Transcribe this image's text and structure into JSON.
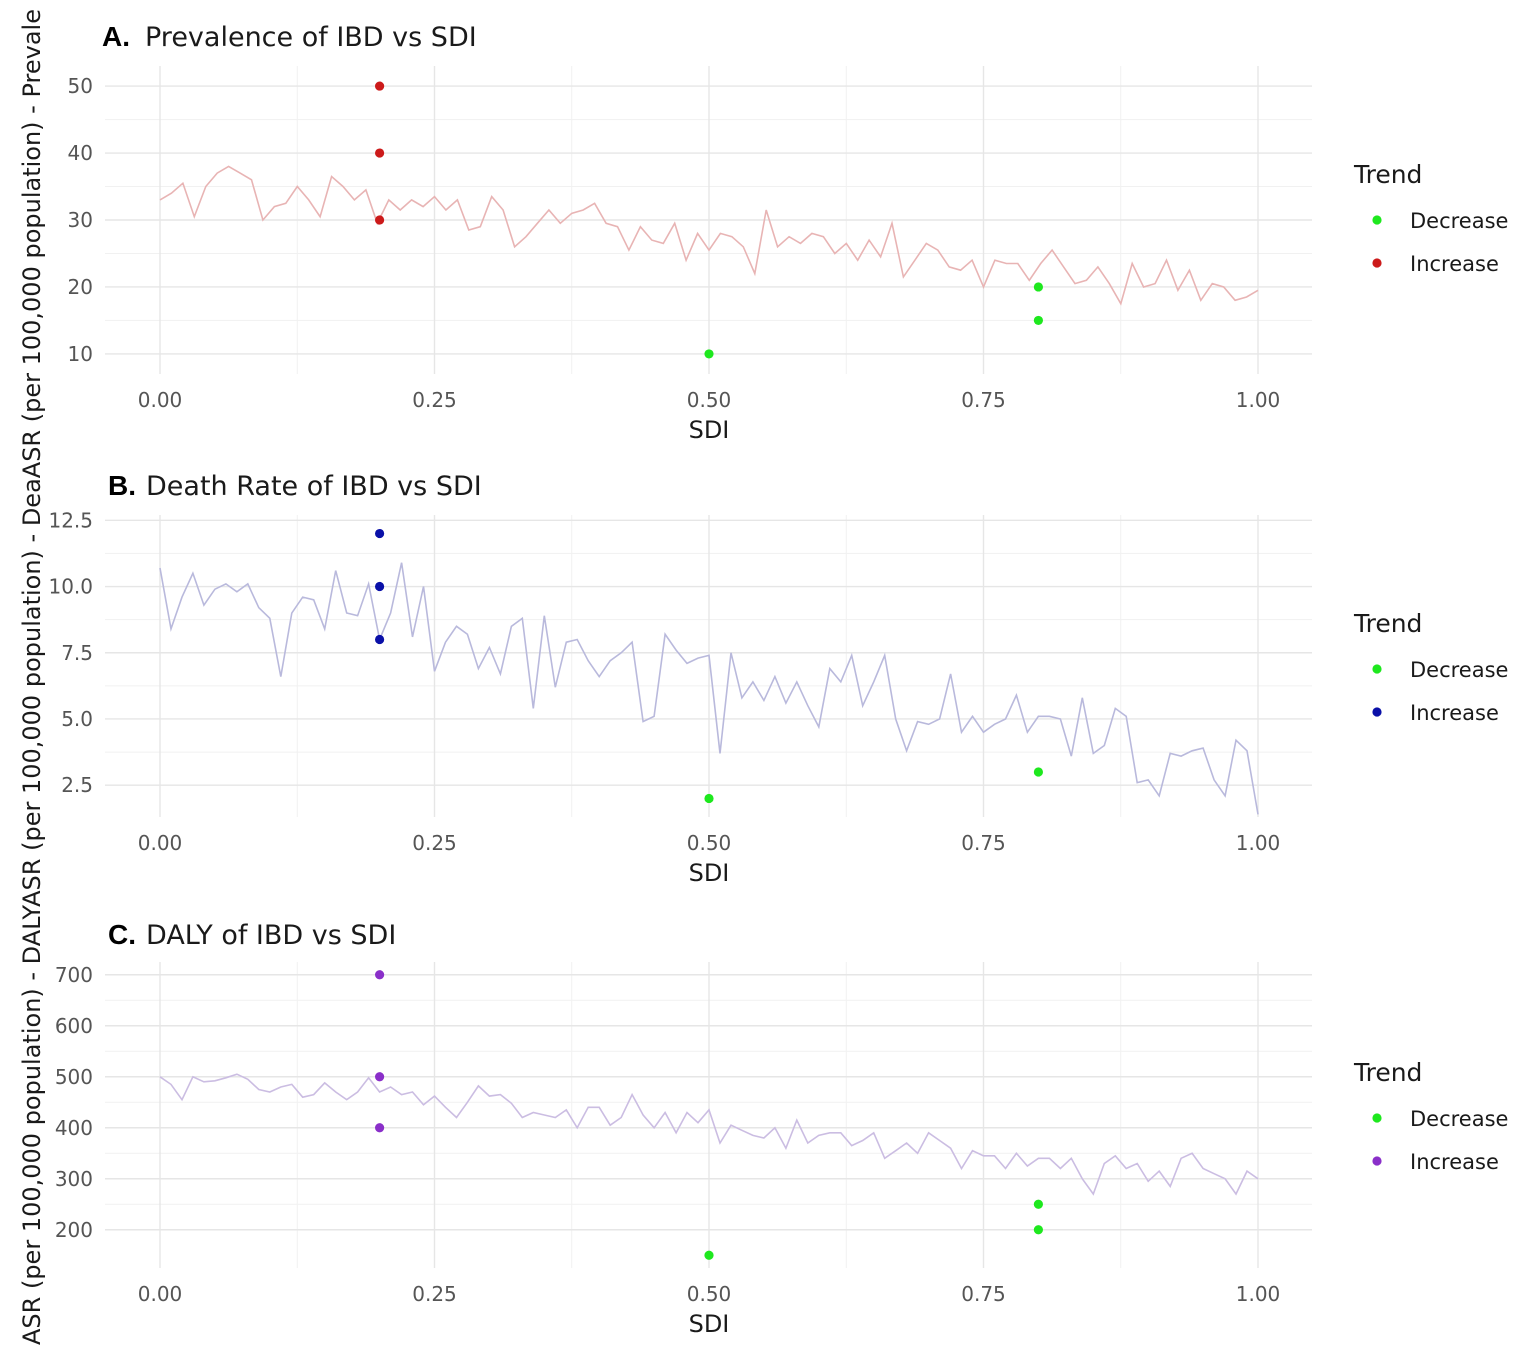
{
  "figure": {
    "y_axis_label": "ASR (per 100,000 population) - DALYASR (per 100,000 population) - DeaASR (per 100,000 population) - Prevale"
  },
  "chart_data": [
    {
      "type": "line",
      "panel_letter": "A.",
      "title": "Prevalence of IBD vs SDI",
      "xlabel": "SDI",
      "xlim": [
        0,
        1
      ],
      "xticks": [
        0,
        0.25,
        0.5,
        0.75,
        1
      ],
      "xtick_labels": [
        "0.00",
        "0.25",
        "0.50",
        "0.75",
        "1.00"
      ],
      "ylim": [
        7,
        53
      ],
      "yticks": [
        10,
        20,
        30,
        40,
        50
      ],
      "ytick_labels": [
        "10",
        "20",
        "30",
        "40",
        "50"
      ],
      "grid": true,
      "line_color": "#e8b4b4",
      "series": [
        {
          "x_start": 0,
          "x_end": 1,
          "values": [
            33,
            34,
            35.5,
            30.5,
            35,
            37,
            38,
            37,
            36,
            30,
            32,
            32.5,
            35,
            33,
            30.5,
            36.5,
            35,
            33,
            34.5,
            29.5,
            33,
            31.5,
            33,
            32,
            33.5,
            31.5,
            33,
            28.5,
            29,
            33.5,
            31.5,
            26,
            27.5,
            29.5,
            31.5,
            29.5,
            31,
            31.5,
            32.5,
            29.5,
            29,
            25.5,
            29,
            27,
            26.5,
            29.5,
            24,
            28,
            25.5,
            28,
            27.5,
            26,
            22,
            31.5,
            26,
            27.5,
            26.5,
            28,
            27.5,
            25,
            26.5,
            24,
            27,
            24.5,
            29.5,
            21.5,
            24,
            26.5,
            25.5,
            23,
            22.5,
            24,
            20,
            24,
            23.5,
            23.5,
            21,
            23.5,
            25.5,
            23,
            20.5,
            21,
            23,
            20.5,
            17.5,
            23.5,
            20,
            20.5,
            24,
            19.5,
            22.5,
            18,
            20.5,
            20,
            18,
            18.5,
            19.5
          ]
        }
      ],
      "trend_points": [
        {
          "x": 0.2,
          "y": 50,
          "trend": "Increase"
        },
        {
          "x": 0.2,
          "y": 40,
          "trend": "Increase"
        },
        {
          "x": 0.2,
          "y": 30,
          "trend": "Increase"
        },
        {
          "x": 0.8,
          "y": 20,
          "trend": "Decrease"
        },
        {
          "x": 0.8,
          "y": 15,
          "trend": "Decrease"
        },
        {
          "x": 0.5,
          "y": 10,
          "trend": "Decrease"
        }
      ],
      "legend": {
        "title": "Trend",
        "position": "right",
        "entries": [
          {
            "label": "Decrease",
            "color": "#1ee81e"
          },
          {
            "label": "Increase",
            "color": "#cc1a1a"
          }
        ]
      }
    },
    {
      "type": "line",
      "panel_letter": "B.",
      "title": "Death Rate of IBD vs SDI",
      "xlabel": "SDI",
      "xlim": [
        0,
        1
      ],
      "xticks": [
        0,
        0.25,
        0.5,
        0.75,
        1
      ],
      "xtick_labels": [
        "0.00",
        "0.25",
        "0.50",
        "0.75",
        "1.00"
      ],
      "ylim": [
        1.3,
        12.7
      ],
      "yticks": [
        2.5,
        5,
        7.5,
        10,
        12.5
      ],
      "ytick_labels": [
        "2.5",
        "5.0",
        "7.5",
        "10.0",
        "12.5"
      ],
      "grid": true,
      "line_color": "#b9b9dc",
      "series": [
        {
          "x_start": 0,
          "x_end": 1,
          "values": [
            10.7,
            8.4,
            9.6,
            10.5,
            9.3,
            9.9,
            10.1,
            9.8,
            10.1,
            9.2,
            8.8,
            6.6,
            9.0,
            9.6,
            9.5,
            8.4,
            10.6,
            9.0,
            8.9,
            10.1,
            8.0,
            9.0,
            10.9,
            8.1,
            10.0,
            6.8,
            7.9,
            8.5,
            8.2,
            6.9,
            7.7,
            6.7,
            8.5,
            8.8,
            5.4,
            8.9,
            6.2,
            7.9,
            8.0,
            7.2,
            6.6,
            7.2,
            7.5,
            7.9,
            4.9,
            5.1,
            8.2,
            7.6,
            7.1,
            7.3,
            7.4,
            3.7,
            7.5,
            5.8,
            6.4,
            5.7,
            6.6,
            5.6,
            6.4,
            5.5,
            4.7,
            6.9,
            6.4,
            7.4,
            5.5,
            6.4,
            7.4,
            5.0,
            3.8,
            4.9,
            4.8,
            5.0,
            6.7,
            4.5,
            5.1,
            4.5,
            4.8,
            5.0,
            5.9,
            4.5,
            5.1,
            5.1,
            5.0,
            3.6,
            5.8,
            3.7,
            4.0,
            5.4,
            5.1,
            2.6,
            2.7,
            2.1,
            3.7,
            3.6,
            3.8,
            3.9,
            2.7,
            2.1,
            4.2,
            3.8,
            1.4
          ]
        }
      ],
      "trend_points": [
        {
          "x": 0.2,
          "y": 12,
          "trend": "Increase"
        },
        {
          "x": 0.2,
          "y": 10,
          "trend": "Increase"
        },
        {
          "x": 0.2,
          "y": 8,
          "trend": "Increase"
        },
        {
          "x": 0.8,
          "y": 3,
          "trend": "Decrease"
        },
        {
          "x": 0.5,
          "y": 2,
          "trend": "Decrease"
        }
      ],
      "legend": {
        "title": "Trend",
        "position": "right",
        "entries": [
          {
            "label": "Decrease",
            "color": "#1ee81e"
          },
          {
            "label": "Increase",
            "color": "#0a10a8"
          }
        ]
      }
    },
    {
      "type": "line",
      "panel_letter": "C.",
      "title": "DALY of IBD vs SDI",
      "xlabel": "SDI",
      "xlim": [
        0,
        1
      ],
      "xticks": [
        0,
        0.25,
        0.5,
        0.75,
        1
      ],
      "xtick_labels": [
        "0.00",
        "0.25",
        "0.50",
        "0.75",
        "1.00"
      ],
      "ylim": [
        125,
        725
      ],
      "yticks": [
        200,
        300,
        400,
        500,
        600,
        700
      ],
      "ytick_labels": [
        "200",
        "300",
        "400",
        "500",
        "600",
        "700"
      ],
      "grid": true,
      "line_color": "#cbbde2",
      "series": [
        {
          "x_start": 0,
          "x_end": 1,
          "values": [
            500,
            485,
            455,
            500,
            490,
            492,
            498,
            505,
            495,
            475,
            470,
            480,
            485,
            460,
            465,
            488,
            470,
            455,
            470,
            498,
            470,
            480,
            465,
            470,
            445,
            462,
            440,
            420,
            450,
            482,
            462,
            465,
            448,
            420,
            430,
            425,
            420,
            435,
            400,
            440,
            440,
            405,
            420,
            465,
            425,
            400,
            430,
            390,
            430,
            410,
            435,
            370,
            405,
            395,
            385,
            380,
            400,
            360,
            415,
            370,
            385,
            390,
            390,
            365,
            375,
            390,
            340,
            355,
            370,
            350,
            390,
            375,
            360,
            320,
            355,
            345,
            345,
            320,
            350,
            325,
            340,
            340,
            320,
            340,
            300,
            270,
            330,
            345,
            320,
            330,
            295,
            315,
            285,
            340,
            350,
            320,
            310,
            300,
            270,
            315,
            300
          ]
        }
      ],
      "trend_points": [
        {
          "x": 0.2,
          "y": 700,
          "trend": "Increase"
        },
        {
          "x": 0.2,
          "y": 500,
          "trend": "Increase"
        },
        {
          "x": 0.2,
          "y": 400,
          "trend": "Increase"
        },
        {
          "x": 0.8,
          "y": 250,
          "trend": "Decrease"
        },
        {
          "x": 0.8,
          "y": 200,
          "trend": "Decrease"
        },
        {
          "x": 0.5,
          "y": 150,
          "trend": "Decrease"
        }
      ],
      "legend": {
        "title": "Trend",
        "position": "right",
        "entries": [
          {
            "label": "Decrease",
            "color": "#1ee81e"
          },
          {
            "label": "Increase",
            "color": "#8a2fc9"
          }
        ]
      }
    }
  ]
}
